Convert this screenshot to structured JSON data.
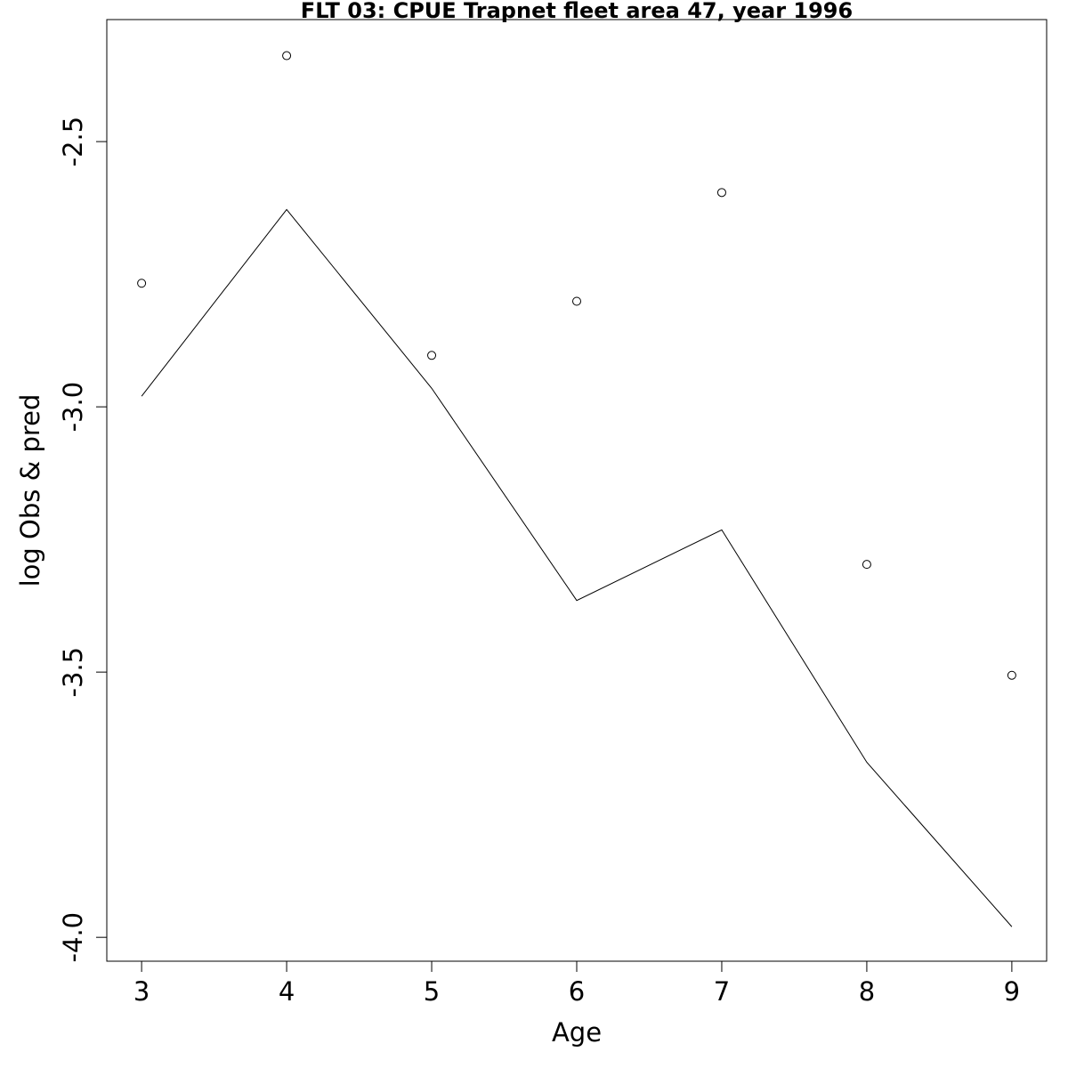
{
  "chart_data": {
    "type": "line",
    "title": "FLT 03: CPUE Trapnet fleet area 47, year 1996",
    "xlabel": "Age",
    "ylabel": "log Obs & pred",
    "x": [
      3,
      4,
      5,
      6,
      7,
      8,
      9
    ],
    "xticks": [
      "3",
      "4",
      "5",
      "6",
      "7",
      "8",
      "9"
    ],
    "yticks": [
      -2.5,
      -3.0,
      -3.5,
      -4.0
    ],
    "ytick_labels": [
      "-2.5",
      "-3.0",
      "-3.5",
      "-4.0"
    ],
    "xlim": [
      2.76,
      9.24
    ],
    "ylim": [
      -4.045,
      -2.27
    ],
    "grid": false,
    "legend": "none",
    "series": [
      {
        "kind": "line",
        "values": [
          -2.98,
          -2.628,
          -2.965,
          -3.365,
          -3.232,
          -3.67,
          -3.98
        ]
      },
      {
        "kind": "points",
        "values": [
          -2.767,
          -2.338,
          -2.903,
          -2.801,
          -2.596,
          -3.297,
          -3.506
        ]
      }
    ],
    "colors": {
      "line": "#000000",
      "points": "#000000",
      "frame": "#000000"
    }
  }
}
